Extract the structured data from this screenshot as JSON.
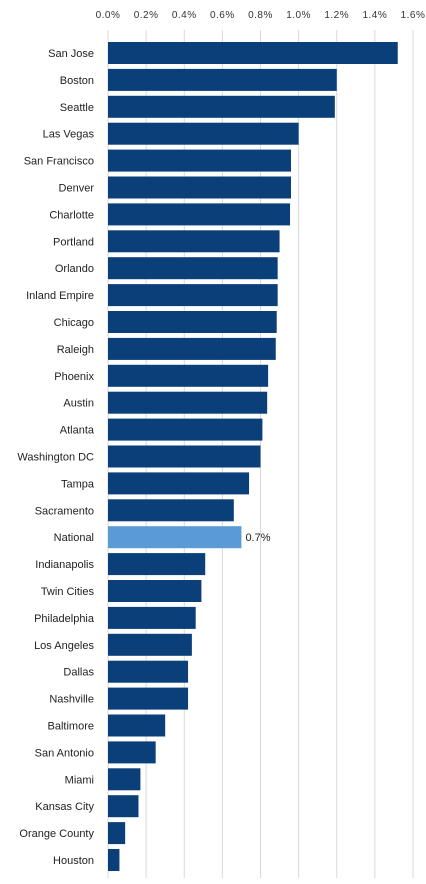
{
  "chart_data": {
    "type": "bar",
    "orientation": "horizontal",
    "title": "",
    "xlabel": "",
    "ylabel": "",
    "xlim": [
      0,
      1.6
    ],
    "x_ticks": [
      "0.0%",
      "0.2%",
      "0.4%",
      "0.6%",
      "0.8%",
      "1.0%",
      "1.2%",
      "1.4%",
      "1.6%"
    ],
    "x_tick_values": [
      0,
      0.2,
      0.4,
      0.6,
      0.8,
      1.0,
      1.2,
      1.4,
      1.6
    ],
    "x_axis_position": "top",
    "grid": true,
    "categories": [
      "San Jose",
      "Boston",
      "Seattle",
      "Las Vegas",
      "San Francisco",
      "Denver",
      "Charlotte",
      "Portland",
      "Orlando",
      "Inland Empire",
      "Chicago",
      "Raleigh",
      "Phoenix",
      "Austin",
      "Atlanta",
      "Washington DC",
      "Tampa",
      "Sacramento",
      "National",
      "Indianapolis",
      "Twin Cities",
      "Philadelphia",
      "Los Angeles",
      "Dallas",
      "Nashville",
      "Baltimore",
      "San Antonio",
      "Miami",
      "Kansas City",
      "Orange County",
      "Houston"
    ],
    "values": [
      1.52,
      1.2,
      1.19,
      1.0,
      0.96,
      0.96,
      0.955,
      0.9,
      0.89,
      0.89,
      0.885,
      0.88,
      0.84,
      0.835,
      0.81,
      0.8,
      0.74,
      0.66,
      0.7,
      0.51,
      0.49,
      0.46,
      0.44,
      0.42,
      0.42,
      0.3,
      0.25,
      0.17,
      0.16,
      0.09,
      0.06
    ],
    "highlight": {
      "category": "National",
      "label": "0.7%"
    },
    "colors": {
      "bar": "#0b3f7a",
      "highlight": "#5b9bd5",
      "grid": "#d9d9d9"
    }
  }
}
